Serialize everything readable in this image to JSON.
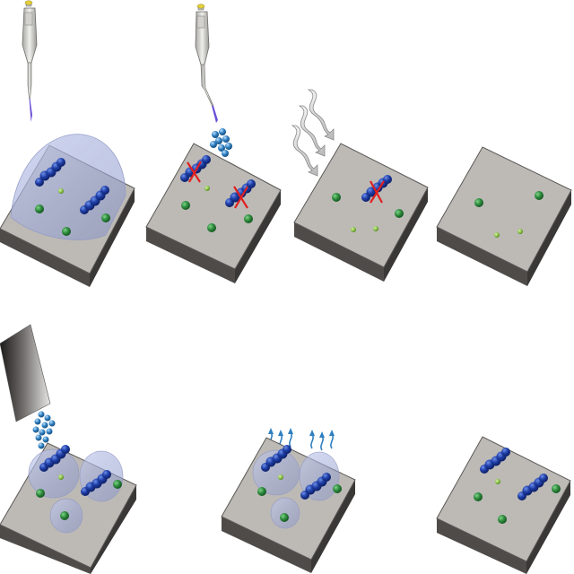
{
  "colors": {
    "background": "#ffffff",
    "plate_top": "#bdbab6",
    "plate_side": "#4e4b49",
    "plate_side_dark": "#3a3837",
    "molecule_blue": "#1f3fa8",
    "particle_green": "#2e8b3c",
    "particle_light_green": "#8bc34a",
    "droplet": "#9aa6d4",
    "buffer_blue": "#2f7fc0",
    "cross_red": "#e02020",
    "pipette_body": "#d9d9d6",
    "pipette_tip_violet": "#6b4fd8",
    "nozzle_dark": "#2a2727"
  },
  "panels": [
    {
      "name": "panel-top-1-drop-deposition",
      "icon": "pipette-icon",
      "plate": "plate-with-large-droplet"
    },
    {
      "name": "panel-top-2-rinse-drop",
      "icon": "pipette-icon",
      "plate": "plate-with-removed-molecules"
    },
    {
      "name": "panel-top-3-gas-flow",
      "icon": "airflow-arrows-icon",
      "plate": "plate-drying"
    },
    {
      "name": "panel-top-4-particles-only",
      "icon": "",
      "plate": "plate-clean"
    },
    {
      "name": "panel-bottom-1-spray-deposition",
      "icon": "spray-nozzle-icon",
      "plate": "plate-with-small-droplets"
    },
    {
      "name": "panel-bottom-2-evaporation",
      "icon": "evaporation-arrows-icon",
      "plate": "plate-evaporating"
    },
    {
      "name": "panel-bottom-3-molecules-adsorbed",
      "icon": "",
      "plate": "plate-with-molecules"
    }
  ]
}
